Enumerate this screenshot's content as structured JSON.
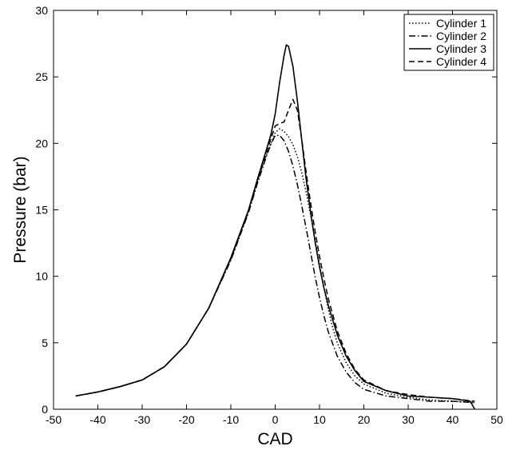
{
  "chart_data": {
    "type": "line",
    "title": "",
    "xlabel": "CAD",
    "ylabel": "Pressure (bar)",
    "xlim": [
      -50,
      50
    ],
    "ylim": [
      0,
      30
    ],
    "xticks": [
      -50,
      -40,
      -30,
      -20,
      -10,
      0,
      10,
      20,
      30,
      40,
      50
    ],
    "yticks": [
      0,
      5,
      10,
      15,
      20,
      25,
      30
    ],
    "grid": false,
    "legend_position": "top-right",
    "series": [
      {
        "name": "Cylinder 1",
        "style": "dotted",
        "x": [
          -45,
          -40,
          -35,
          -30,
          -25,
          -20,
          -15,
          -10,
          -6,
          -4,
          -2,
          0,
          1,
          2,
          3,
          4,
          5,
          6,
          7,
          8,
          9,
          10,
          11,
          12,
          13,
          14,
          16,
          18,
          20,
          25,
          30,
          35,
          40,
          45
        ],
        "y": [
          1.0,
          1.3,
          1.7,
          2.2,
          3.2,
          4.9,
          7.6,
          11.3,
          14.9,
          17.1,
          19.1,
          20.8,
          21.1,
          20.9,
          20.5,
          19.9,
          19.0,
          17.8,
          16.3,
          14.6,
          12.8,
          10.9,
          9.1,
          7.5,
          6.1,
          5.0,
          3.5,
          2.5,
          1.9,
          1.2,
          0.9,
          0.7,
          0.6,
          0.5
        ]
      },
      {
        "name": "Cylinder 2",
        "style": "dash-dot",
        "x": [
          -45,
          -40,
          -35,
          -30,
          -25,
          -20,
          -15,
          -10,
          -6,
          -4,
          -2,
          -1,
          0,
          1,
          2,
          3,
          4,
          5,
          6,
          7,
          8,
          9,
          10,
          11,
          12,
          14,
          16,
          18,
          20,
          25,
          30,
          35,
          40,
          45
        ],
        "y": [
          1.0,
          1.3,
          1.7,
          2.2,
          3.2,
          4.9,
          7.6,
          11.2,
          14.8,
          17.0,
          19.0,
          19.9,
          20.6,
          20.6,
          20.2,
          19.4,
          18.3,
          16.9,
          15.3,
          13.6,
          11.8,
          10.0,
          8.4,
          7.0,
          5.8,
          4.0,
          2.8,
          2.0,
          1.5,
          1.0,
          0.8,
          0.6,
          0.6,
          0.5
        ]
      },
      {
        "name": "Cylinder 3",
        "style": "solid",
        "x": [
          -45,
          -40,
          -35,
          -30,
          -25,
          -20,
          -15,
          -10,
          -6,
          -4,
          -2,
          -1,
          0,
          1,
          2,
          2.5,
          3,
          4,
          5,
          6,
          7,
          8,
          9,
          10,
          11,
          12,
          14,
          16,
          18,
          20,
          25,
          30,
          35,
          40,
          44,
          45
        ],
        "y": [
          1.0,
          1.3,
          1.7,
          2.2,
          3.2,
          4.9,
          7.6,
          11.4,
          15.0,
          17.3,
          19.5,
          20.6,
          22.2,
          24.6,
          26.6,
          27.4,
          27.3,
          25.8,
          23.2,
          20.2,
          17.3,
          14.8,
          12.6,
          10.7,
          9.1,
          7.8,
          5.6,
          4.0,
          2.9,
          2.1,
          1.4,
          1.0,
          0.9,
          0.8,
          0.6,
          0.0
        ]
      },
      {
        "name": "Cylinder 4",
        "style": "dashed",
        "x": [
          -45,
          -40,
          -35,
          -30,
          -25,
          -20,
          -15,
          -10,
          -6,
          -4,
          -2,
          -1,
          0,
          1,
          2,
          3,
          4,
          5,
          6,
          7,
          8,
          9,
          10,
          11,
          12,
          14,
          16,
          18,
          20,
          25,
          30,
          35,
          40,
          45
        ],
        "y": [
          1.0,
          1.3,
          1.7,
          2.2,
          3.2,
          4.9,
          7.6,
          11.3,
          14.9,
          17.2,
          19.3,
          20.3,
          21.3,
          21.5,
          21.6,
          22.5,
          23.3,
          22.5,
          20.3,
          17.8,
          15.5,
          13.4,
          11.5,
          9.8,
          8.3,
          5.9,
          4.2,
          3.0,
          2.2,
          1.4,
          1.1,
          0.9,
          0.8,
          0.6
        ]
      }
    ]
  }
}
